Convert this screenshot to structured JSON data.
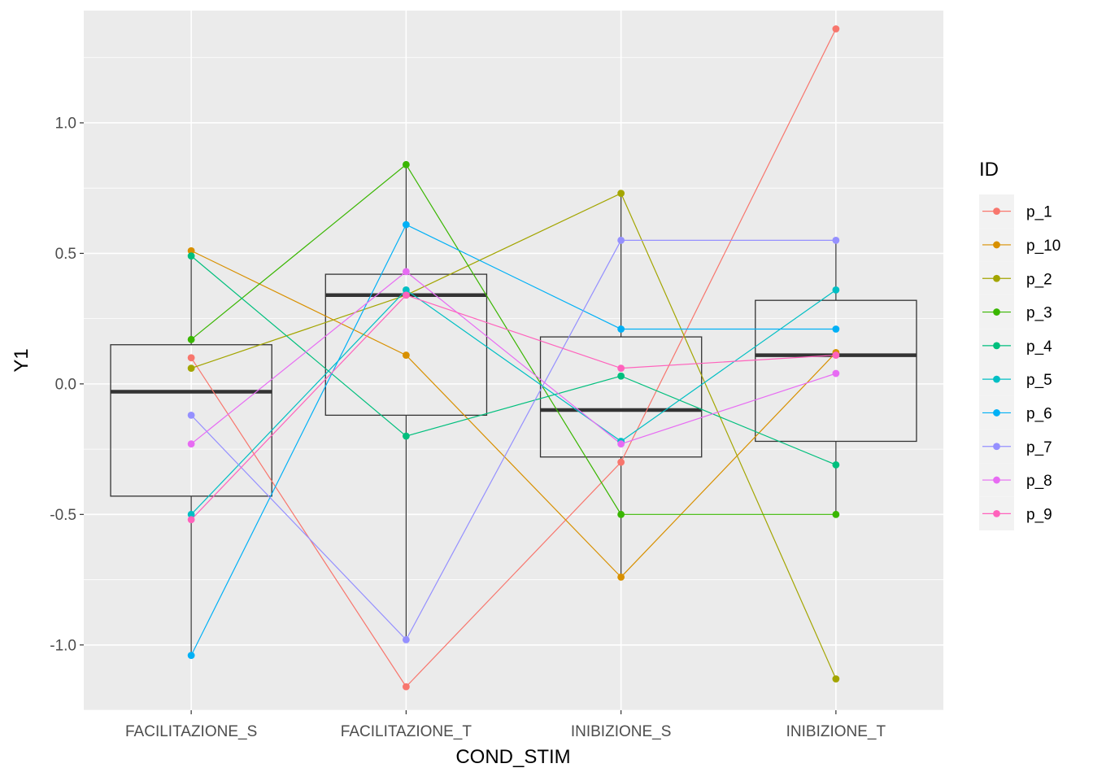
{
  "chart_data": {
    "type": "line",
    "xlabel": "COND_STIM",
    "ylabel": "Y1",
    "categories": [
      "FACILITAZIONE_S",
      "FACILITAZIONE_T",
      "INIBIZIONE_S",
      "INIBIZIONE_T"
    ],
    "ylim": [
      -1.25,
      1.43
    ],
    "yticks": [
      -1.0,
      -0.5,
      0.0,
      0.5,
      1.0
    ],
    "ytick_labels": [
      "-1.0",
      "-0.5",
      "0.0",
      "0.5",
      "1.0"
    ],
    "grid": true,
    "panel_background": "#ebebeb",
    "legend": {
      "title": "ID",
      "position": "right"
    },
    "series": [
      {
        "name": "p_1",
        "color": "#F8766D",
        "values": [
          0.1,
          -1.16,
          -0.3,
          1.36
        ]
      },
      {
        "name": "p_10",
        "color": "#D89000",
        "values": [
          0.51,
          0.11,
          -0.74,
          0.12
        ]
      },
      {
        "name": "p_2",
        "color": "#A3A500",
        "values": [
          0.06,
          0.34,
          0.73,
          -1.13
        ]
      },
      {
        "name": "p_3",
        "color": "#39B600",
        "values": [
          0.17,
          0.84,
          -0.5,
          -0.5
        ]
      },
      {
        "name": "p_4",
        "color": "#00BF7D",
        "values": [
          0.49,
          -0.2,
          0.03,
          -0.31
        ]
      },
      {
        "name": "p_5",
        "color": "#00BFC4",
        "values": [
          -0.5,
          0.36,
          -0.22,
          0.36
        ]
      },
      {
        "name": "p_6",
        "color": "#00B0F6",
        "values": [
          -1.04,
          0.61,
          0.21,
          0.21
        ]
      },
      {
        "name": "p_7",
        "color": "#9590FF",
        "values": [
          -0.12,
          -0.98,
          0.55,
          0.55
        ]
      },
      {
        "name": "p_8",
        "color": "#E76BF3",
        "values": [
          -0.23,
          0.43,
          -0.23,
          0.04
        ]
      },
      {
        "name": "p_9",
        "color": "#FF62BC",
        "values": [
          -0.52,
          0.34,
          0.06,
          0.11
        ]
      }
    ],
    "boxplots": [
      {
        "category": "FACILITAZIONE_S",
        "min": -1.04,
        "q1": -0.43,
        "median": -0.03,
        "q3": 0.15,
        "max": 0.51
      },
      {
        "category": "FACILITAZIONE_T",
        "min": -0.98,
        "q1": -0.12,
        "median": 0.34,
        "q3": 0.42,
        "max": 0.84
      },
      {
        "category": "INIBIZIONE_S",
        "min": -0.74,
        "q1": -0.28,
        "median": -0.1,
        "q3": 0.18,
        "max": 0.73
      },
      {
        "category": "INIBIZIONE_T",
        "min": -0.5,
        "q1": -0.22,
        "median": 0.11,
        "q3": 0.32,
        "max": 0.55
      }
    ]
  }
}
